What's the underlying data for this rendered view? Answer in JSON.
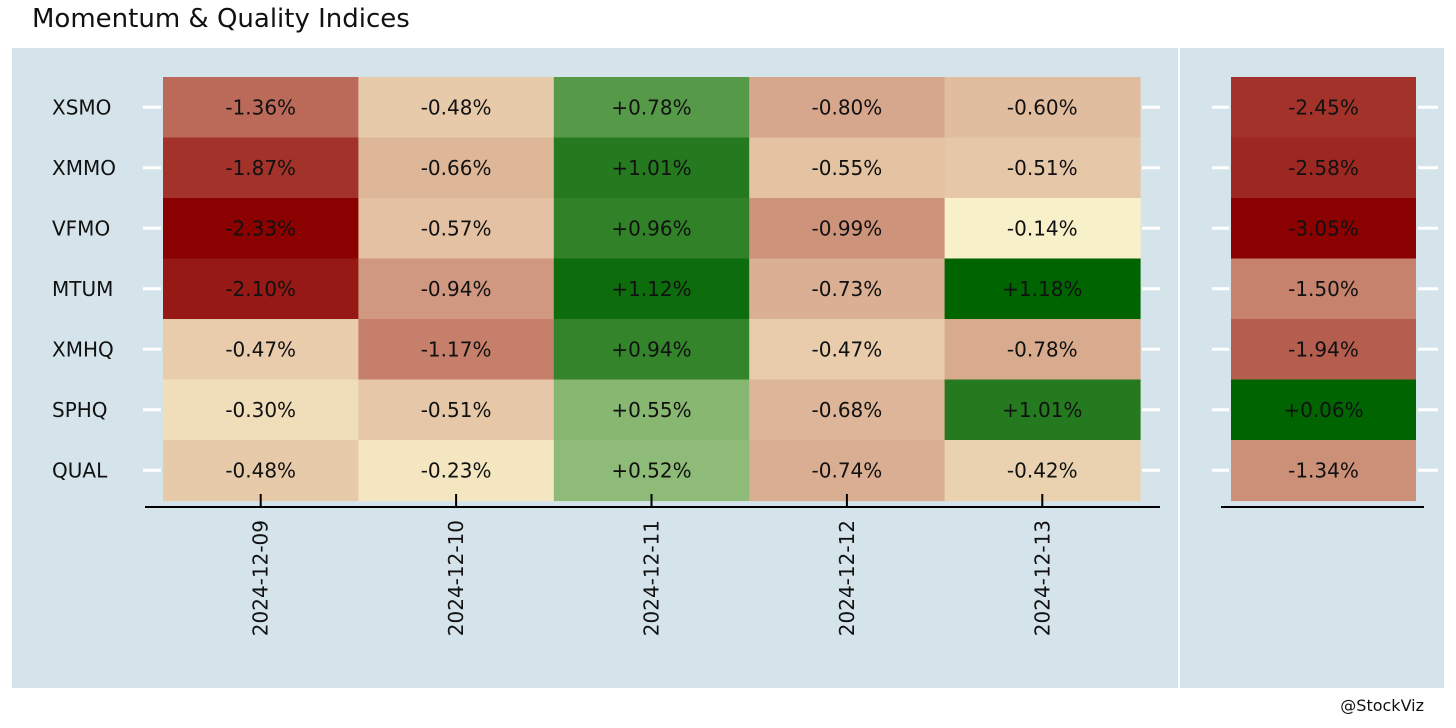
{
  "title": "Momentum & Quality Indices",
  "credit": "@StockViz",
  "colors": {
    "panel_background": "#d5e4eb",
    "scale_low": "#8b0000",
    "scale_mid": "#ffffd6",
    "scale_high": "#006400"
  },
  "chart_data": [
    {
      "type": "heatmap",
      "title": "Momentum & Quality Indices",
      "xlabel": "",
      "ylabel": "",
      "x": [
        "2024-12-09",
        "2024-12-10",
        "2024-12-11",
        "2024-12-12",
        "2024-12-13"
      ],
      "y": [
        "XSMO",
        "XMMO",
        "VFMO",
        "MTUM",
        "XMHQ",
        "SPHQ",
        "QUAL"
      ],
      "values": [
        [
          -1.36,
          -0.48,
          0.78,
          -0.8,
          -0.6
        ],
        [
          -1.87,
          -0.66,
          1.01,
          -0.55,
          -0.51
        ],
        [
          -2.33,
          -0.57,
          0.96,
          -0.99,
          -0.14
        ],
        [
          -2.1,
          -0.94,
          1.12,
          -0.73,
          1.18
        ],
        [
          -0.47,
          -1.17,
          0.94,
          -0.47,
          -0.78
        ],
        [
          -0.3,
          -0.51,
          0.55,
          -0.68,
          1.01
        ],
        [
          -0.48,
          -0.23,
          0.52,
          -0.74,
          -0.42
        ]
      ],
      "labels": [
        [
          "-1.36%",
          "-0.48%",
          "+0.78%",
          "-0.80%",
          "-0.60%"
        ],
        [
          "-1.87%",
          "-0.66%",
          "+1.01%",
          "-0.55%",
          "-0.51%"
        ],
        [
          "-2.33%",
          "-0.57%",
          "+0.96%",
          "-0.99%",
          "-0.14%"
        ],
        [
          "-2.10%",
          "-0.94%",
          "+1.12%",
          "-0.73%",
          "+1.18%"
        ],
        [
          "-0.47%",
          "-1.17%",
          "+0.94%",
          "-0.47%",
          "-0.78%"
        ],
        [
          "-0.30%",
          "-0.51%",
          "+0.55%",
          "-0.68%",
          "+1.01%"
        ],
        [
          "-0.48%",
          "-0.23%",
          "+0.52%",
          "-0.74%",
          "-0.42%"
        ]
      ],
      "grid": false,
      "legend": "none"
    },
    {
      "type": "heatmap",
      "xlabel": "",
      "ylabel": "",
      "y": [
        "XSMO",
        "XMMO",
        "VFMO",
        "MTUM",
        "XMHQ",
        "SPHQ",
        "QUAL"
      ],
      "values": [
        -2.45,
        -2.58,
        -3.05,
        -1.5,
        -1.94,
        0.06,
        -1.34
      ],
      "labels": [
        "-2.45%",
        "-2.58%",
        "-3.05%",
        "-1.50%",
        "-1.94%",
        "+0.06%",
        "-1.34%"
      ],
      "grid": false,
      "legend": "none"
    }
  ]
}
